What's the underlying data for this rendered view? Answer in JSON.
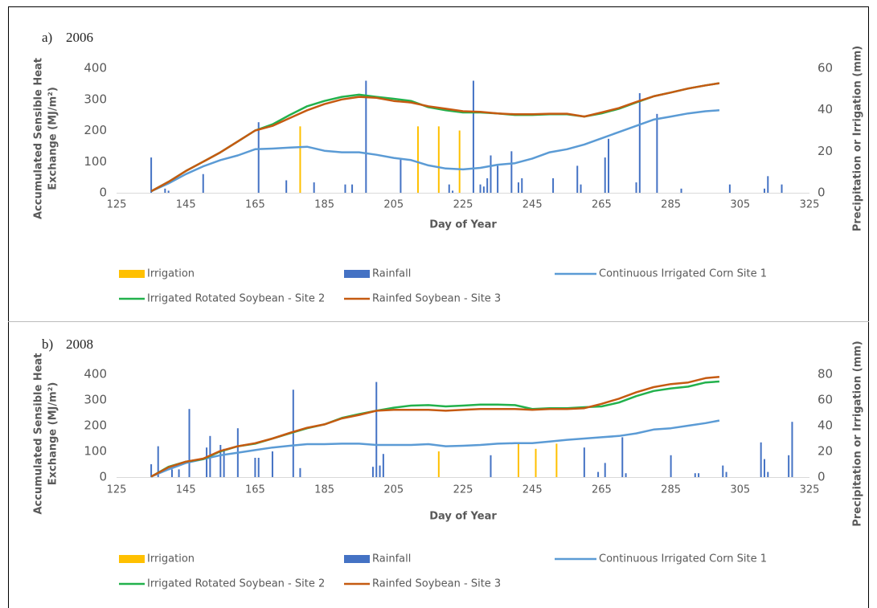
{
  "chart_data": [
    {
      "type": "combo",
      "panel_label": "a)",
      "title": "2006",
      "xlabel": "Day of Year",
      "ylabel": [
        "Accumulated Sensible Heat",
        "Exchange  (MJ/m²)"
      ],
      "y2label": "Precipitation or Irrigation (mm)",
      "xlim": [
        125,
        325
      ],
      "xticks": [
        125,
        145,
        165,
        185,
        205,
        225,
        245,
        265,
        285,
        305,
        325
      ],
      "ylim": [
        0,
        400
      ],
      "yticks": [
        0,
        100,
        200,
        300,
        400
      ],
      "y2lim": [
        0,
        60
      ],
      "y2ticks": [
        0,
        20,
        40,
        60
      ],
      "series": [
        {
          "name": "Irrigation",
          "type": "bar",
          "axis": "y2",
          "color": "#ffc000",
          "x": [
            178,
            212,
            218,
            224
          ],
          "values": [
            32,
            32,
            32,
            30
          ]
        },
        {
          "name": "Rainfall",
          "type": "bar",
          "axis": "y2",
          "color": "#4472c4",
          "x": [
            135,
            139,
            140,
            150,
            166,
            174,
            182,
            191,
            193,
            197,
            207,
            221,
            222,
            228,
            230,
            231,
            232,
            233,
            235,
            239,
            241,
            242,
            251,
            258,
            259,
            266,
            267,
            275,
            276,
            281,
            288,
            302,
            312,
            313,
            317
          ],
          "values": [
            17,
            2,
            1,
            9,
            34,
            6,
            5,
            4,
            4,
            54,
            16,
            4,
            1,
            54,
            4,
            3,
            7,
            18,
            13,
            20,
            5,
            7,
            7,
            13,
            4,
            17,
            26,
            5,
            48,
            38,
            2,
            4,
            2,
            8,
            4
          ]
        },
        {
          "name": "Continuous Irrigated Corn  Site 1",
          "type": "line",
          "color": "#5b9bd5",
          "x": [
            135,
            140,
            145,
            150,
            155,
            160,
            165,
            170,
            175,
            180,
            185,
            190,
            195,
            200,
            205,
            210,
            215,
            220,
            225,
            230,
            235,
            240,
            245,
            250,
            255,
            260,
            265,
            270,
            275,
            280,
            285,
            290,
            295,
            299
          ],
          "values": [
            5,
            30,
            60,
            85,
            105,
            120,
            140,
            142,
            145,
            148,
            135,
            130,
            130,
            122,
            112,
            105,
            88,
            78,
            75,
            80,
            90,
            95,
            110,
            130,
            140,
            155,
            175,
            195,
            215,
            235,
            245,
            255,
            262,
            265
          ]
        },
        {
          "name": "Irrigated Rotated Soybean - Site 2",
          "type": "line",
          "color": "#22b14c",
          "x": [
            135,
            140,
            145,
            150,
            155,
            160,
            165,
            170,
            175,
            180,
            185,
            190,
            195,
            200,
            205,
            210,
            215,
            220,
            225,
            230,
            235,
            240,
            245,
            250,
            255,
            260,
            265,
            270,
            275,
            280,
            285,
            290,
            295,
            299
          ],
          "values": [
            5,
            35,
            70,
            100,
            130,
            165,
            200,
            220,
            250,
            278,
            295,
            308,
            315,
            308,
            302,
            295,
            275,
            265,
            258,
            258,
            255,
            250,
            250,
            252,
            252,
            245,
            255,
            270,
            290,
            310,
            322,
            335,
            345,
            352
          ]
        },
        {
          "name": "Rainfed Soybean - Site 3",
          "type": "line",
          "color": "#c55a11",
          "x": [
            135,
            140,
            145,
            150,
            155,
            160,
            165,
            170,
            175,
            180,
            185,
            190,
            195,
            200,
            205,
            210,
            215,
            220,
            225,
            230,
            235,
            240,
            245,
            250,
            255,
            260,
            265,
            270,
            275,
            280,
            285,
            290,
            295,
            299
          ],
          "values": [
            5,
            35,
            70,
            100,
            130,
            165,
            200,
            215,
            240,
            265,
            285,
            300,
            308,
            305,
            295,
            290,
            278,
            270,
            262,
            260,
            255,
            252,
            252,
            254,
            254,
            245,
            258,
            272,
            292,
            310,
            322,
            335,
            345,
            352
          ]
        }
      ]
    },
    {
      "type": "combo",
      "panel_label": "b)",
      "title": "2008",
      "xlabel": "Day of Year",
      "ylabel": [
        "Accumulated Sensible Heat",
        "Exchange  (MJ/m²)"
      ],
      "y2label": "Precipitation or Irrigation (mm)",
      "xlim": [
        125,
        325
      ],
      "xticks": [
        125,
        145,
        165,
        185,
        205,
        225,
        245,
        265,
        285,
        305,
        325
      ],
      "ylim": [
        0,
        400
      ],
      "yticks": [
        0,
        100,
        200,
        300,
        400
      ],
      "y2lim": [
        0,
        80
      ],
      "y2ticks": [
        0,
        20,
        40,
        60,
        80
      ],
      "series": [
        {
          "name": "Irrigation",
          "type": "bar",
          "axis": "y2",
          "color": "#ffc000",
          "x": [
            218,
            241,
            246,
            252
          ],
          "values": [
            20,
            26,
            22,
            26
          ]
        },
        {
          "name": "Rainfall",
          "type": "bar",
          "axis": "y2",
          "color": "#4472c4",
          "x": [
            135,
            137,
            141,
            143,
            146,
            151,
            152,
            155,
            156,
            160,
            165,
            166,
            170,
            176,
            178,
            199,
            200,
            201,
            202,
            233,
            260,
            264,
            266,
            271,
            272,
            285,
            292,
            293,
            300,
            301,
            311,
            312,
            313,
            319,
            320
          ],
          "values": [
            10,
            24,
            6,
            6,
            53,
            23,
            32,
            25,
            22,
            38,
            15,
            15,
            20,
            68,
            7,
            8,
            74,
            9,
            18,
            17,
            23,
            4,
            11,
            31,
            3,
            17,
            3,
            3,
            9,
            4,
            27,
            14,
            4,
            17,
            43
          ]
        },
        {
          "name": "Continuous Irrigated Corn  Site 1",
          "type": "line",
          "color": "#5b9bd5",
          "x": [
            135,
            140,
            145,
            150,
            155,
            160,
            165,
            170,
            175,
            180,
            185,
            190,
            195,
            200,
            205,
            210,
            215,
            220,
            225,
            230,
            235,
            240,
            245,
            250,
            255,
            260,
            265,
            270,
            275,
            280,
            285,
            290,
            295,
            299
          ],
          "values": [
            2,
            30,
            55,
            70,
            85,
            95,
            105,
            115,
            122,
            128,
            128,
            130,
            130,
            125,
            125,
            125,
            128,
            120,
            122,
            125,
            130,
            132,
            132,
            138,
            145,
            150,
            155,
            160,
            170,
            185,
            190,
            200,
            210,
            220
          ]
        },
        {
          "name": "Irrigated Rotated Soybean - Site 2",
          "type": "line",
          "color": "#22b14c",
          "x": [
            135,
            140,
            145,
            150,
            155,
            160,
            165,
            170,
            175,
            180,
            185,
            190,
            195,
            200,
            205,
            210,
            215,
            220,
            225,
            230,
            235,
            240,
            245,
            250,
            255,
            260,
            265,
            270,
            275,
            280,
            285,
            290,
            295,
            299
          ],
          "values": [
            2,
            40,
            60,
            70,
            100,
            120,
            130,
            150,
            170,
            190,
            205,
            230,
            245,
            258,
            270,
            278,
            280,
            275,
            278,
            282,
            282,
            280,
            265,
            268,
            268,
            272,
            275,
            290,
            315,
            335,
            345,
            352,
            368,
            372
          ]
        },
        {
          "name": "Rainfed Soybean - Site 3",
          "type": "line",
          "color": "#c55a11",
          "x": [
            135,
            140,
            145,
            150,
            155,
            160,
            165,
            170,
            175,
            180,
            185,
            190,
            195,
            200,
            205,
            210,
            215,
            220,
            225,
            230,
            235,
            240,
            245,
            250,
            255,
            260,
            265,
            270,
            275,
            280,
            285,
            290,
            295,
            299
          ],
          "values": [
            2,
            38,
            60,
            72,
            102,
            120,
            132,
            150,
            172,
            192,
            205,
            228,
            242,
            258,
            262,
            262,
            262,
            258,
            262,
            265,
            265,
            265,
            262,
            265,
            265,
            268,
            285,
            305,
            330,
            350,
            362,
            368,
            385,
            390
          ]
        }
      ]
    }
  ]
}
